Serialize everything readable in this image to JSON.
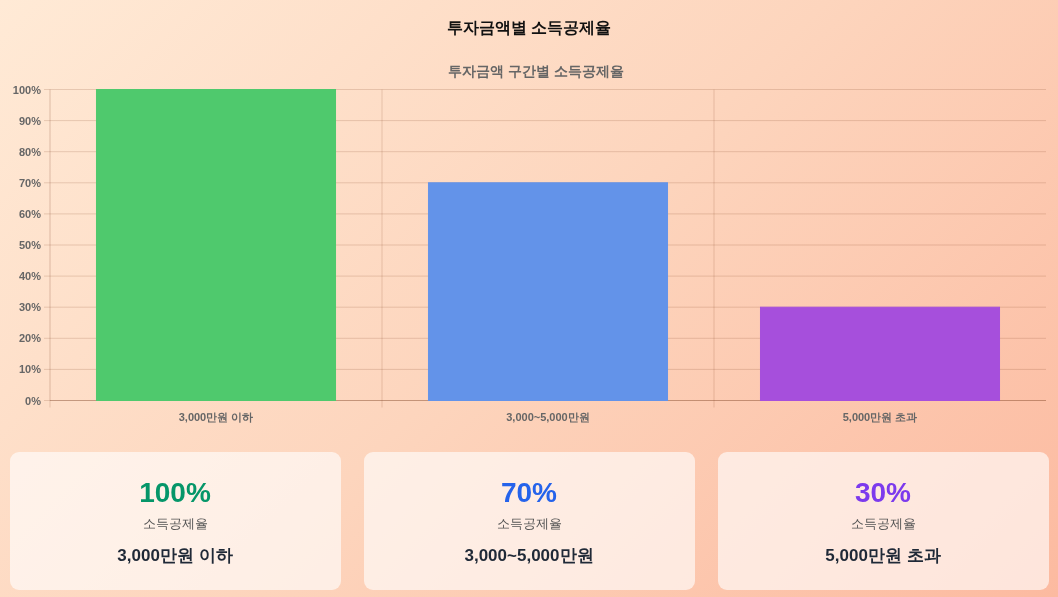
{
  "chart_data": [
    {
      "type": "bar",
      "title": "투자금액별 소득공제율",
      "subtitle": "투자금액 구간별 소득공제율",
      "categories": [
        "3,000만원 이하",
        "3,000~5,000만원",
        "5,000만원 초과"
      ],
      "values": [
        100,
        70,
        30
      ],
      "colors": [
        "#4fc96d",
        "#6393e9",
        "#a64fdc"
      ],
      "ylim": [
        0,
        100
      ],
      "yticks": [
        {
          "value": 0,
          "label": "0%"
        },
        {
          "value": 10,
          "label": "10%"
        },
        {
          "value": 20,
          "label": "20%"
        },
        {
          "value": 30,
          "label": "30%"
        },
        {
          "value": 40,
          "label": "40%"
        },
        {
          "value": 50,
          "label": "50%"
        },
        {
          "value": 60,
          "label": "60%"
        },
        {
          "value": 70,
          "label": "70%"
        },
        {
          "value": 80,
          "label": "80%"
        },
        {
          "value": 90,
          "label": "90%"
        },
        {
          "value": 100,
          "label": "100%"
        }
      ],
      "grid": true
    },
    {
      "type": "other",
      "title": "100%",
      "subtitle": "소득공제율",
      "annotations": [
        "3,000만원 이하"
      ],
      "colors": [
        "#059669"
      ]
    },
    {
      "type": "other",
      "title": "70%",
      "subtitle": "소득공제율",
      "annotations": [
        "3,000~5,000만원"
      ],
      "colors": [
        "#2563eb"
      ]
    },
    {
      "type": "other",
      "title": "30%",
      "subtitle": "소득공제율",
      "annotations": [
        "5,000만원 초과"
      ],
      "colors": [
        "#7c3aed"
      ]
    }
  ]
}
